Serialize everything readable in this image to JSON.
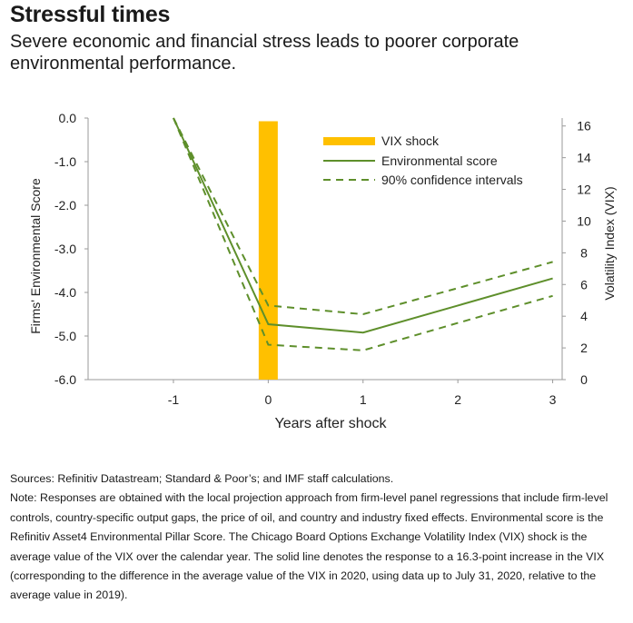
{
  "header": {
    "title": "Stressful times",
    "subtitle": "Severe economic and financial stress leads to poorer corporate environmental performance."
  },
  "chart_data": {
    "type": "line",
    "title": "Stressful times",
    "xlabel": "Years after shock",
    "ylabel": "Firms' Environmental Score",
    "y2label": "Volatility Index (VIX)",
    "x": [
      -1,
      0,
      1,
      2,
      3
    ],
    "x_tick_labels": [
      "-1",
      "0",
      "1",
      "2",
      "3"
    ],
    "ylim": [
      -6.0,
      0.0
    ],
    "y_ticks": [
      0.0,
      -1.0,
      -2.0,
      -3.0,
      -4.0,
      -5.0,
      -6.0
    ],
    "y_tick_labels": [
      "0.0",
      "-1.0",
      "-2.0",
      "-3.0",
      "-4.0",
      "-5.0",
      "-6.0"
    ],
    "y2lim": [
      0,
      16.5
    ],
    "y2_ticks": [
      0,
      2,
      4,
      6,
      8,
      10,
      12,
      14,
      16
    ],
    "y2_tick_labels": [
      "0",
      "2",
      "4",
      "6",
      "8",
      "10",
      "12",
      "14",
      "16"
    ],
    "vix_bar": {
      "name": "VIX shock",
      "x": 0,
      "value": 16.3,
      "color": "#FFC000"
    },
    "series": [
      {
        "name": "Environmental score",
        "style": "solid",
        "color": "#5E8F2B",
        "values": [
          0.0,
          -4.73,
          -4.92,
          -4.3,
          -3.68
        ]
      },
      {
        "name": "90% confidence intervals",
        "style": "dashed",
        "color": "#5E8F2B",
        "values": [
          0.0,
          -4.3,
          -4.5,
          -3.9,
          -3.3
        ]
      },
      {
        "name": "90% confidence intervals (lower)",
        "style": "dashed",
        "color": "#5E8F2B",
        "legend": false,
        "values": [
          0.0,
          -5.2,
          -5.33,
          -4.7,
          -4.08
        ]
      }
    ],
    "legend": {
      "position": "top-right",
      "items": [
        "VIX shock",
        "Environmental score",
        "90% confidence intervals"
      ]
    },
    "grid": false
  },
  "footer": {
    "sources": "Sources: Refinitiv Datastream; Standard & Poor’s; and IMF staff calculations.",
    "note": "Note: Responses are obtained with the local projection approach from firm-level panel regressions that include firm-level controls, country-specific output gaps, the price of oil, and country and industry fixed effects. Environmental score is the Refinitiv Asset4 Environmental Pillar Score. The Chicago Board Options Exchange Volatility Index (VIX) shock is the average value of the VIX over the calendar year. The solid line denotes the response to a 16.3-point increase in the VIX (corresponding to the difference in the average value of the VIX in 2020, using data up to July 31, 2020, relative to the average value in 2019)."
  }
}
